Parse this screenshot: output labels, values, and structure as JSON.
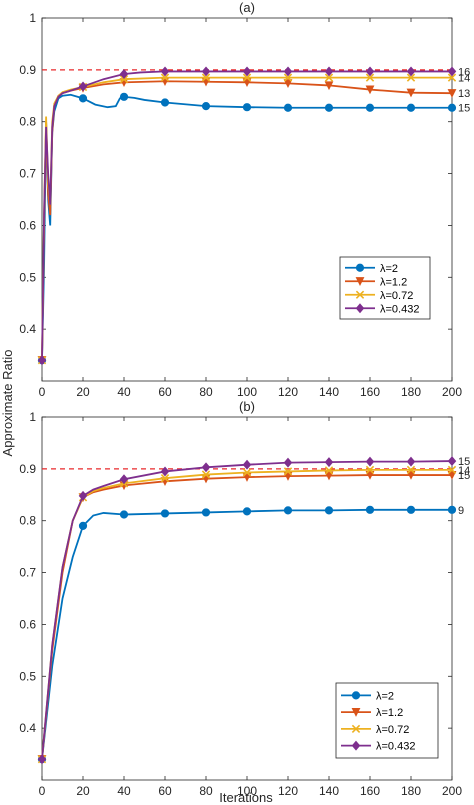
{
  "figure": {
    "ylabel": "Approximate Ratio",
    "xlabel": "Iterations"
  },
  "chart_data": [
    {
      "type": "line",
      "title": "(a)",
      "xlim": [
        0,
        200
      ],
      "ylim": [
        0.3,
        1
      ],
      "xticks": [
        0,
        20,
        40,
        60,
        80,
        100,
        120,
        140,
        160,
        180,
        200
      ],
      "yticks": [
        0.4,
        0.5,
        0.6,
        0.7,
        0.8,
        0.9,
        1
      ],
      "reference_line": 0.9,
      "legend_position": "right",
      "series": [
        {
          "name": "λ=2",
          "color": "#0072BD",
          "marker": "circle",
          "end_label": "15",
          "x": [
            0,
            1,
            2,
            3,
            4,
            5,
            6,
            8,
            10,
            14,
            20,
            26,
            32,
            36,
            38,
            40,
            45,
            50,
            60,
            80,
            100,
            120,
            140,
            160,
            180,
            200
          ],
          "y": [
            0.34,
            0.52,
            0.8,
            0.65,
            0.6,
            0.78,
            0.82,
            0.845,
            0.85,
            0.852,
            0.845,
            0.833,
            0.828,
            0.83,
            0.845,
            0.848,
            0.846,
            0.842,
            0.837,
            0.83,
            0.828,
            0.827,
            0.827,
            0.827,
            0.827,
            0.827
          ]
        },
        {
          "name": "λ=1.2",
          "color": "#D95319",
          "marker": "triangle-down",
          "end_label": "13",
          "x": [
            0,
            1,
            2,
            3,
            4,
            5,
            6,
            8,
            10,
            14,
            20,
            30,
            40,
            60,
            80,
            100,
            120,
            140,
            160,
            180,
            200
          ],
          "y": [
            0.34,
            0.6,
            0.8,
            0.66,
            0.62,
            0.78,
            0.83,
            0.85,
            0.855,
            0.86,
            0.865,
            0.872,
            0.876,
            0.878,
            0.877,
            0.876,
            0.874,
            0.87,
            0.862,
            0.856,
            0.855
          ]
        },
        {
          "name": "λ=0.72",
          "color": "#EDB120",
          "marker": "x",
          "end_label": "14",
          "x": [
            0,
            1,
            2,
            3,
            4,
            5,
            6,
            8,
            10,
            14,
            20,
            30,
            40,
            60,
            80,
            100,
            120,
            140,
            160,
            180,
            200
          ],
          "y": [
            0.34,
            0.62,
            0.81,
            0.68,
            0.64,
            0.8,
            0.835,
            0.85,
            0.857,
            0.862,
            0.867,
            0.876,
            0.882,
            0.885,
            0.885,
            0.885,
            0.885,
            0.885,
            0.885,
            0.885,
            0.885
          ]
        },
        {
          "name": "λ=0.432",
          "color": "#7E2F8E",
          "marker": "diamond",
          "end_label": "16",
          "x": [
            0,
            1,
            2,
            3,
            4,
            5,
            6,
            8,
            10,
            14,
            20,
            30,
            40,
            48,
            60,
            80,
            100,
            120,
            140,
            160,
            180,
            200
          ],
          "y": [
            0.34,
            0.62,
            0.79,
            0.7,
            0.64,
            0.79,
            0.83,
            0.848,
            0.855,
            0.86,
            0.868,
            0.882,
            0.892,
            0.895,
            0.897,
            0.897,
            0.897,
            0.897,
            0.897,
            0.897,
            0.897,
            0.897
          ]
        }
      ]
    },
    {
      "type": "line",
      "title": "(b)",
      "xlim": [
        0,
        200
      ],
      "ylim": [
        0.3,
        1
      ],
      "xticks": [
        0,
        20,
        40,
        60,
        80,
        100,
        120,
        140,
        160,
        180,
        200
      ],
      "yticks": [
        0.4,
        0.5,
        0.6,
        0.7,
        0.8,
        0.9,
        1
      ],
      "reference_line": 0.9,
      "legend_position": "bottom-right",
      "series": [
        {
          "name": "λ=2",
          "color": "#0072BD",
          "marker": "circle",
          "end_label": "9",
          "x": [
            0,
            5,
            10,
            15,
            20,
            25,
            30,
            40,
            60,
            80,
            100,
            120,
            140,
            160,
            180,
            200
          ],
          "y": [
            0.34,
            0.52,
            0.65,
            0.73,
            0.79,
            0.81,
            0.815,
            0.812,
            0.814,
            0.816,
            0.818,
            0.82,
            0.82,
            0.821,
            0.821,
            0.821
          ]
        },
        {
          "name": "λ=1.2",
          "color": "#D95319",
          "marker": "triangle-down",
          "end_label": "15",
          "x": [
            0,
            5,
            10,
            15,
            20,
            25,
            30,
            40,
            60,
            80,
            100,
            120,
            140,
            160,
            180,
            200
          ],
          "y": [
            0.34,
            0.55,
            0.7,
            0.8,
            0.845,
            0.855,
            0.86,
            0.868,
            0.876,
            0.881,
            0.884,
            0.886,
            0.887,
            0.888,
            0.888,
            0.888
          ]
        },
        {
          "name": "λ=0.72",
          "color": "#EDB120",
          "marker": "x",
          "end_label": "14",
          "x": [
            0,
            5,
            10,
            15,
            20,
            25,
            30,
            40,
            60,
            80,
            100,
            120,
            140,
            160,
            180,
            200
          ],
          "y": [
            0.34,
            0.56,
            0.71,
            0.8,
            0.845,
            0.857,
            0.863,
            0.872,
            0.882,
            0.889,
            0.893,
            0.895,
            0.897,
            0.898,
            0.898,
            0.898
          ]
        },
        {
          "name": "λ=0.432",
          "color": "#7E2F8E",
          "marker": "diamond",
          "end_label": "15",
          "x": [
            0,
            5,
            10,
            15,
            20,
            25,
            30,
            40,
            60,
            80,
            100,
            120,
            140,
            160,
            180,
            200
          ],
          "y": [
            0.34,
            0.56,
            0.71,
            0.8,
            0.848,
            0.86,
            0.867,
            0.88,
            0.895,
            0.903,
            0.908,
            0.912,
            0.913,
            0.914,
            0.914,
            0.915
          ]
        }
      ]
    }
  ]
}
